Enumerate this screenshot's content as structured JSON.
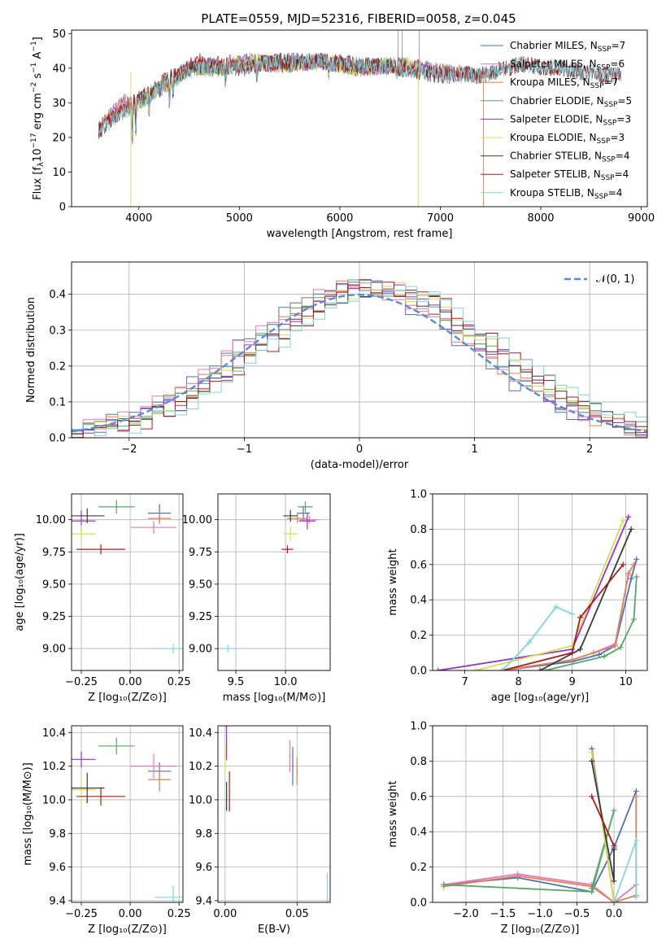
{
  "figure_title": "PLATE=0559, MJD=52316, FIBERID=0058, z=0.045",
  "chart_data": [
    {
      "id": "spectrum",
      "type": "line",
      "xlabel": "wavelength [Angstrom, rest frame]",
      "ylabel": "Flux [f_λ 10^-17 erg cm^-2 s^-1 A^-1]",
      "xlim": [
        3330,
        9060
      ],
      "ylim": [
        0,
        51
      ],
      "xticks": [
        4000,
        5000,
        6000,
        7000,
        8000,
        9000
      ],
      "yticks": [
        0,
        10,
        20,
        30,
        40,
        50
      ],
      "grid": false,
      "legend_position": "upper-right",
      "series": [
        {
          "name": "Chabrier MILES, N_SSP=7",
          "color": "#4c72b0",
          "x": [
            3600,
            3700,
            3850,
            3950,
            4100,
            4300,
            4500,
            4800,
            5100,
            5400,
            5800,
            6200,
            6600,
            7000,
            7400
          ],
          "y": [
            22,
            26,
            30,
            30,
            32,
            36,
            40,
            40,
            42,
            41,
            42,
            40,
            41,
            39,
            38
          ]
        },
        {
          "name": "Salpeter MILES, N_SSP=6",
          "color": "#e377c2",
          "x": [
            3600,
            3700,
            3850,
            3950,
            4100,
            4300,
            4500,
            4800,
            5100,
            5400,
            5800,
            6200,
            6600,
            7000,
            7400
          ],
          "y": [
            22,
            26,
            30,
            30,
            32,
            36,
            41,
            40,
            42,
            41,
            42,
            40,
            41,
            39,
            38
          ]
        },
        {
          "name": "Kroupa MILES, N_SSP=7",
          "color": "#dd8452",
          "x": [
            3600,
            3700,
            3850,
            3950,
            4100,
            4300,
            4500,
            4800,
            5100,
            5400,
            5800,
            6200,
            6600,
            7000,
            7400
          ],
          "y": [
            22,
            26,
            30,
            30,
            32,
            36,
            40,
            40,
            42,
            41,
            42,
            40,
            41,
            39,
            38
          ]
        },
        {
          "name": "Chabrier ELODIE, N_SSP=5",
          "color": "#55a868",
          "x": [
            3900,
            4100,
            4300,
            4500,
            4800,
            5100,
            5400,
            5800,
            6200,
            6600,
            6800
          ],
          "y": [
            28,
            32,
            36,
            40,
            40,
            42,
            41,
            42,
            40,
            41,
            40
          ]
        },
        {
          "name": "Salpeter ELODIE, N_SSP=3",
          "color": "#9b30d0",
          "x": [
            3900,
            4100,
            4300,
            4500,
            4800,
            5100,
            5400,
            5800,
            6200,
            6600,
            6800
          ],
          "y": [
            28,
            32,
            36,
            40,
            41,
            42,
            41,
            42,
            40,
            41,
            40
          ]
        },
        {
          "name": "Kroupa ELODIE, N_SSP=3",
          "color": "#d6e04a",
          "x": [
            3900,
            4100,
            4300,
            4500,
            4800,
            5100,
            5400,
            5800,
            6200,
            6600,
            6800
          ],
          "y": [
            28,
            32,
            36,
            40,
            40,
            42,
            41,
            42,
            40,
            41,
            40
          ]
        },
        {
          "name": "Chabrier STELIB, N_SSP=4",
          "color": "#3a3a3a",
          "x": [
            3600,
            3800,
            4000,
            4300,
            4600,
            5000,
            5400,
            5800,
            6200,
            6600,
            7000,
            7400,
            7800,
            8200,
            8600,
            8800
          ],
          "y": [
            22,
            27,
            31,
            37,
            41,
            40,
            42,
            42,
            41,
            40,
            38,
            38,
            41,
            40,
            38,
            38
          ]
        },
        {
          "name": "Salpeter STELIB, N_SSP=4",
          "color": "#b01a1a",
          "x": [
            3600,
            3800,
            4000,
            4300,
            4600,
            5000,
            5400,
            5800,
            6200,
            6600,
            7000,
            7400,
            7800,
            8200,
            8600,
            8800
          ],
          "y": [
            22,
            27,
            31,
            37,
            42,
            40,
            42,
            42,
            41,
            40,
            38,
            38,
            41,
            40,
            38,
            38
          ]
        },
        {
          "name": "Kroupa STELIB, N_SSP=4",
          "color": "#7fd6df",
          "x": [
            3600,
            3800,
            4000,
            4300,
            4600,
            5000,
            5400,
            5800,
            6200,
            6600,
            7000,
            7400,
            7800,
            8200,
            8600,
            8800
          ],
          "y": [
            22,
            26,
            30,
            36,
            40,
            40,
            42,
            42,
            41,
            40,
            38,
            38,
            41,
            40,
            38,
            38
          ]
        }
      ]
    },
    {
      "id": "residuals",
      "type": "line",
      "xlabel": "(data-model)/error",
      "ylabel": "Normed distribution",
      "xlim": [
        -2.5,
        2.5
      ],
      "ylim": [
        0,
        0.49
      ],
      "xticks": [
        -2,
        -1,
        0,
        1,
        2
      ],
      "yticks": [
        0.0,
        0.1,
        0.2,
        0.3,
        0.4
      ],
      "grid": true,
      "legend_position": "upper-right",
      "reference_curve": {
        "name": "𝒩(0, 1)",
        "color": "#5b8ad6",
        "style": "dashed"
      },
      "series_colors": [
        "#4c72b0",
        "#e377c2",
        "#dd8452",
        "#55a868",
        "#9b30d0",
        "#d6e04a",
        "#3a3a3a",
        "#b01a1a",
        "#7fd6df"
      ]
    },
    {
      "id": "age-vs-Z",
      "type": "scatter",
      "xlabel": "Z [log10(Z/Z⊙)]",
      "ylabel": "age  [log10(age/yr)]",
      "xlim": [
        -0.3,
        0.27
      ],
      "ylim": [
        8.83,
        10.2
      ],
      "xticks": [
        -0.25,
        0.0,
        0.25
      ],
      "yticks": [
        9.0,
        9.25,
        9.5,
        9.75,
        10.0
      ],
      "grid": true,
      "points": [
        {
          "x": 0.15,
          "y": 10.05,
          "color": "#4c72b0"
        },
        {
          "x": 0.12,
          "y": 9.94,
          "color": "#e377c2"
        },
        {
          "x": 0.15,
          "y": 10.01,
          "color": "#dd8452"
        },
        {
          "x": -0.07,
          "y": 10.1,
          "color": "#55a868"
        },
        {
          "x": -0.25,
          "y": 9.99,
          "color": "#9b30d0"
        },
        {
          "x": -0.25,
          "y": 9.89,
          "color": "#d6e04a"
        },
        {
          "x": -0.22,
          "y": 10.03,
          "color": "#3a3a3a"
        },
        {
          "x": -0.15,
          "y": 9.77,
          "color": "#b01a1a"
        },
        {
          "x": 0.22,
          "y": 9.0,
          "color": "#7fd6df"
        }
      ]
    },
    {
      "id": "age-vs-mass",
      "type": "scatter",
      "xlabel": "mass [log10(M/M⊙)]",
      "xlim": [
        9.32,
        10.45
      ],
      "ylim": [
        8.83,
        10.2
      ],
      "xticks": [
        9.5,
        10.0
      ],
      "yticks": [
        9.0,
        9.25,
        9.5,
        9.75,
        10.0
      ],
      "grid": true,
      "points": [
        {
          "x": 10.18,
          "y": 10.05,
          "color": "#4c72b0"
        },
        {
          "x": 10.24,
          "y": 10.0,
          "color": "#e377c2"
        },
        {
          "x": 10.12,
          "y": 10.01,
          "color": "#dd8452"
        },
        {
          "x": 10.2,
          "y": 10.1,
          "color": "#55a868"
        },
        {
          "x": 10.22,
          "y": 9.99,
          "color": "#9b30d0"
        },
        {
          "x": 10.05,
          "y": 9.89,
          "color": "#d6e04a"
        },
        {
          "x": 10.05,
          "y": 10.03,
          "color": "#3a3a3a"
        },
        {
          "x": 10.02,
          "y": 9.77,
          "color": "#b01a1a"
        },
        {
          "x": 9.42,
          "y": 9.0,
          "color": "#7fd6df"
        }
      ]
    },
    {
      "id": "mass-weight-vs-age",
      "type": "line",
      "xlabel": "age  [log10(age/yr)]",
      "ylabel": "mass weight",
      "xlim": [
        6.4,
        10.4
      ],
      "ylim": [
        0.0,
        1.0
      ],
      "xticks": [
        7,
        8,
        9,
        10
      ],
      "yticks": [
        0.0,
        0.2,
        0.4,
        0.6,
        0.8,
        1.0
      ],
      "grid": true,
      "series": [
        {
          "color": "#4c72b0",
          "x": [
            7.7,
            9.0,
            9.5,
            9.8,
            10.1,
            10.2
          ],
          "y": [
            0.0,
            0.05,
            0.09,
            0.14,
            0.52,
            0.63
          ]
        },
        {
          "color": "#e377c2",
          "x": [
            7.7,
            9.0,
            9.4,
            9.8,
            10.05
          ],
          "y": [
            0.0,
            0.06,
            0.1,
            0.15,
            0.54
          ]
        },
        {
          "color": "#dd8452",
          "x": [
            7.7,
            9.0,
            9.4,
            9.8,
            10.05,
            10.15
          ],
          "y": [
            0.0,
            0.06,
            0.1,
            0.14,
            0.55,
            0.6
          ]
        },
        {
          "color": "#55a868",
          "x": [
            8.5,
            9.6,
            9.9,
            10.15,
            10.2
          ],
          "y": [
            0.0,
            0.08,
            0.13,
            0.29,
            0.53
          ]
        },
        {
          "color": "#9b30d0",
          "x": [
            6.5,
            9.0,
            10.05
          ],
          "y": [
            0.0,
            0.12,
            0.87
          ]
        },
        {
          "color": "#d6e04a",
          "x": [
            7.2,
            9.0,
            9.95
          ],
          "y": [
            0.0,
            0.14,
            0.85
          ]
        },
        {
          "color": "#3a3a3a",
          "x": [
            8.4,
            9.15,
            10.1
          ],
          "y": [
            0.0,
            0.12,
            0.8
          ]
        },
        {
          "color": "#b01a1a",
          "x": [
            7.7,
            9.0,
            9.15,
            9.95
          ],
          "y": [
            0.0,
            0.1,
            0.3,
            0.6
          ]
        },
        {
          "color": "#7fd6df",
          "x": [
            7.7,
            8.2,
            8.7,
            9.0
          ],
          "y": [
            0.0,
            0.16,
            0.36,
            0.32
          ]
        }
      ]
    },
    {
      "id": "mass-vs-Z",
      "type": "scatter",
      "xlabel": "Z [log10(Z/Z⊙)]",
      "ylabel": "mass [log10(M/M⊙)]",
      "xlim": [
        -0.3,
        0.27
      ],
      "ylim": [
        9.39,
        10.44
      ],
      "xticks": [
        -0.25,
        0.0,
        0.25
      ],
      "yticks": [
        9.4,
        9.6,
        9.8,
        10.0,
        10.2,
        10.4
      ],
      "grid": true,
      "points": [
        {
          "x": 0.15,
          "y": 10.17,
          "color": "#4c72b0"
        },
        {
          "x": 0.12,
          "y": 10.2,
          "color": "#e377c2"
        },
        {
          "x": 0.15,
          "y": 10.12,
          "color": "#dd8452"
        },
        {
          "x": -0.07,
          "y": 10.32,
          "color": "#55a868"
        },
        {
          "x": -0.25,
          "y": 10.24,
          "color": "#9b30d0"
        },
        {
          "x": -0.25,
          "y": 10.06,
          "color": "#d6e04a"
        },
        {
          "x": -0.22,
          "y": 10.07,
          "color": "#3a3a3a"
        },
        {
          "x": -0.15,
          "y": 10.02,
          "color": "#b01a1a"
        },
        {
          "x": 0.22,
          "y": 9.42,
          "color": "#7fd6df"
        }
      ]
    },
    {
      "id": "mass-vs-ebv",
      "type": "scatter",
      "xlabel": "E(B-V)",
      "xlim": [
        -0.005,
        0.073
      ],
      "ylim": [
        9.39,
        10.44
      ],
      "xticks": [
        0.0,
        0.05
      ],
      "yticks": [
        9.4,
        9.6,
        9.8,
        10.0,
        10.2,
        10.4
      ],
      "grid": true,
      "points": [
        {
          "x": 0.045,
          "y": 10.26,
          "color": "#e377c2"
        },
        {
          "x": 0.047,
          "y": 10.2,
          "color": "#4c72b0"
        },
        {
          "x": 0.05,
          "y": 10.17,
          "color": "#dd8452"
        },
        {
          "x": 0.001,
          "y": 10.38,
          "color": "#9b30d0"
        },
        {
          "x": 0.0,
          "y": 10.25,
          "color": "#d6e04a"
        },
        {
          "x": 0.001,
          "y": 10.02,
          "color": "#3a3a3a"
        },
        {
          "x": 0.003,
          "y": 10.05,
          "color": "#b01a1a"
        },
        {
          "x": 0.071,
          "y": 9.44,
          "color": "#7fd6df"
        }
      ]
    },
    {
      "id": "mass-weight-vs-Z",
      "type": "line",
      "xlabel": "Z [log10(Z/Z⊙)]",
      "ylabel": "mass weight",
      "xlim": [
        -2.45,
        0.45
      ],
      "ylim": [
        0.0,
        1.0
      ],
      "xticks": [
        -2.0,
        -1.5,
        -1.0,
        -0.5,
        0.0
      ],
      "yticks": [
        0.0,
        0.2,
        0.4,
        0.6,
        0.8,
        1.0
      ],
      "grid": true,
      "series": [
        {
          "color": "#4c72b0",
          "x": [
            -2.3,
            -1.3,
            -0.3,
            0.0,
            0.3
          ],
          "y": [
            0.1,
            0.14,
            0.06,
            0.31,
            0.63
          ]
        },
        {
          "color": "#e377c2",
          "x": [
            -2.3,
            -1.3,
            -0.3,
            0.0,
            0.3
          ],
          "y": [
            0.1,
            0.16,
            0.1,
            0.0,
            0.1
          ]
        },
        {
          "color": "#dd8452",
          "x": [
            -2.3,
            -1.3,
            -0.3,
            0.0,
            0.3,
            0.3
          ],
          "y": [
            0.09,
            0.15,
            0.09,
            0.0,
            0.04,
            0.6
          ]
        },
        {
          "color": "#55a868",
          "x": [
            -2.3,
            -0.3,
            0.0,
            -0.3
          ],
          "y": [
            0.1,
            0.06,
            0.52,
            0.08
          ]
        },
        {
          "color": "#9b30d0",
          "x": [
            -0.3,
            0.0
          ],
          "y": [
            0.87,
            0.0
          ]
        },
        {
          "color": "#d6e04a",
          "x": [
            -0.3,
            0.0
          ],
          "y": [
            0.85,
            0.0
          ]
        },
        {
          "color": "#3a3a3a",
          "x": [
            -0.3,
            0.0,
            0.0
          ],
          "y": [
            0.8,
            0.12,
            0.3
          ]
        },
        {
          "color": "#b01a1a",
          "x": [
            -0.3,
            0.0
          ],
          "y": [
            0.6,
            0.32
          ]
        },
        {
          "color": "#7fd6df",
          "x": [
            0.0,
            0.3,
            0.3
          ],
          "y": [
            0.0,
            0.35,
            0.03
          ]
        }
      ]
    }
  ]
}
